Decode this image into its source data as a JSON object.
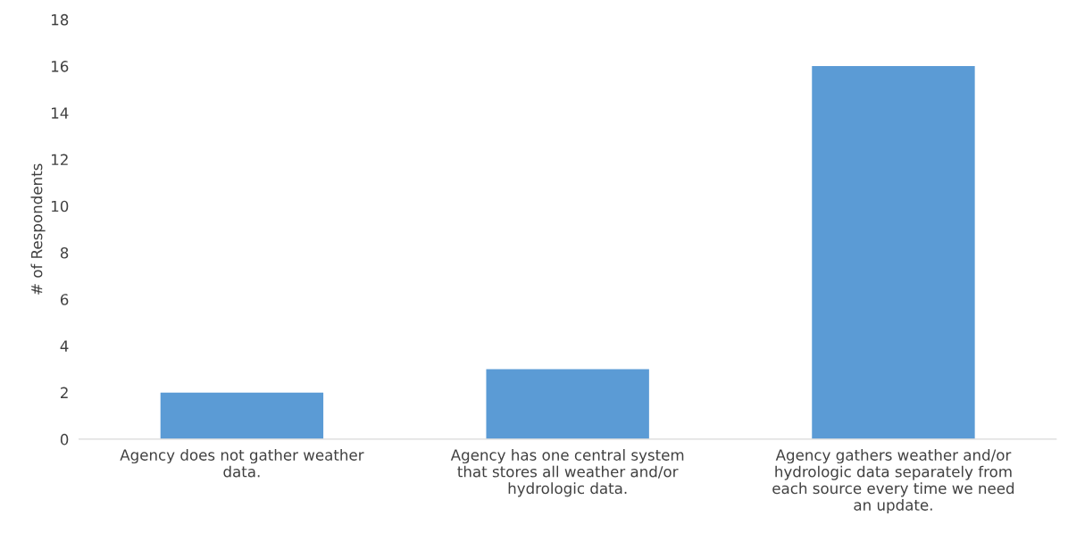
{
  "chart_data": {
    "type": "bar",
    "categories": [
      "Agency does not gather weather data.",
      "Agency has one central system that stores all weather and/or hydrologic data.",
      "Agency gathers weather and/or hydrologic data separately from each source every time we need an update."
    ],
    "values": [
      2,
      3,
      16
    ],
    "color": "#5b9bd5",
    "ylabel": "# of Respondents",
    "ylim": [
      0,
      18
    ],
    "yticks": [
      0,
      2,
      4,
      6,
      8,
      10,
      12,
      14,
      16,
      18
    ],
    "grid": false,
    "legend": false
  }
}
